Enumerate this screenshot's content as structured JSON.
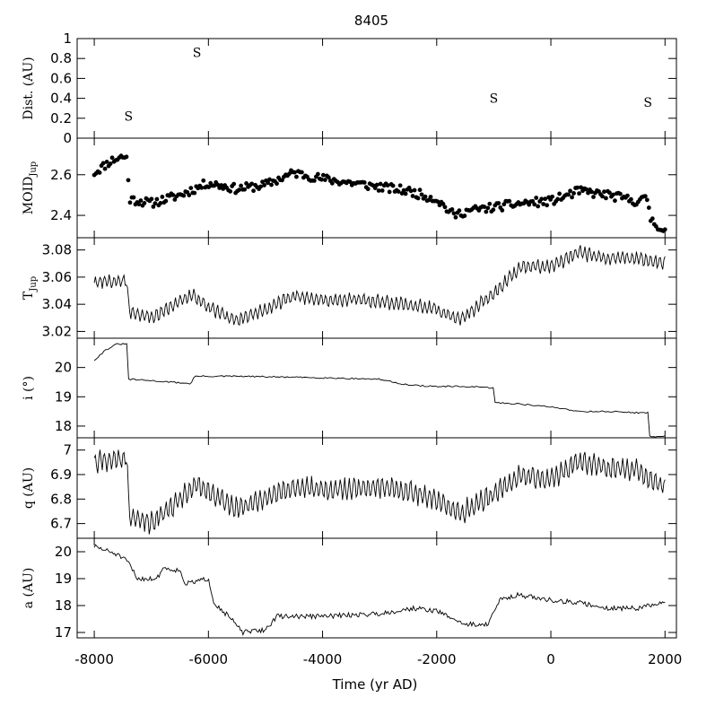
{
  "chart_data": {
    "type": "line",
    "title": "8405",
    "xlabel": "Time (yr AD)",
    "xlim": [
      -8300,
      2200
    ],
    "x_ticks": [
      -8000,
      -6000,
      -4000,
      -2000,
      0,
      2000
    ],
    "x_tick_labels": [
      "-8000",
      "-6000",
      "-4000",
      "-2000",
      "0",
      "2000"
    ],
    "panels": [
      {
        "id": "dist",
        "ylabel": "Dist. (AU)",
        "ylim": [
          0,
          1
        ],
        "yticks": [
          0,
          0.2,
          0.4,
          0.6,
          0.8,
          1
        ],
        "ytick_labels": [
          "0",
          "0.2",
          "0.4",
          "0.6",
          "0.8",
          "1"
        ],
        "annotations": [
          {
            "text": "S",
            "x": -7400,
            "y": 0.22
          },
          {
            "text": "S",
            "x": -6200,
            "y": 0.86
          },
          {
            "text": "S",
            "x": -1000,
            "y": 0.4
          },
          {
            "text": "S",
            "x": 1700,
            "y": 0.36
          }
        ]
      },
      {
        "id": "moid",
        "type": "scatter",
        "ylabel_main": "MOID",
        "ylabel_sub": "Jup",
        "ylim": [
          2.29,
          2.78
        ],
        "yticks": [
          2.4,
          2.6
        ],
        "ytick_labels": [
          "2.4",
          "2.6"
        ],
        "seed": 11,
        "keypoints": [
          [
            -8000,
            2.61
          ],
          [
            -7700,
            2.67
          ],
          [
            -7500,
            2.69
          ],
          [
            -7430,
            2.68
          ],
          [
            -7380,
            2.48
          ],
          [
            -7000,
            2.46
          ],
          [
            -6500,
            2.5
          ],
          [
            -6000,
            2.56
          ],
          [
            -5500,
            2.53
          ],
          [
            -5000,
            2.55
          ],
          [
            -4500,
            2.61
          ],
          [
            -4000,
            2.58
          ],
          [
            -3500,
            2.56
          ],
          [
            -3000,
            2.54
          ],
          [
            -2500,
            2.52
          ],
          [
            -2000,
            2.48
          ],
          [
            -1700,
            2.4
          ],
          [
            -1500,
            2.42
          ],
          [
            -1000,
            2.44
          ],
          [
            -500,
            2.46
          ],
          [
            0,
            2.47
          ],
          [
            500,
            2.52
          ],
          [
            1000,
            2.5
          ],
          [
            1500,
            2.47
          ],
          [
            1700,
            2.48
          ],
          [
            1750,
            2.38
          ],
          [
            2000,
            2.32
          ]
        ],
        "n_points": 320,
        "noise": 0.022
      },
      {
        "id": "tjup",
        "type": "line",
        "ylabel_main": "T",
        "ylabel_sub": "Jup",
        "ylim": [
          3.015,
          3.089
        ],
        "yticks": [
          3.02,
          3.04,
          3.06,
          3.08
        ],
        "ytick_labels": [
          "3.02",
          "3.04",
          "3.06",
          "3.08"
        ],
        "seed": 21,
        "keypoints": [
          [
            -8000,
            3.056
          ],
          [
            -7430,
            3.058
          ],
          [
            -7390,
            3.035
          ],
          [
            -7000,
            3.03
          ],
          [
            -6300,
            3.047
          ],
          [
            -6000,
            3.038
          ],
          [
            -5500,
            3.028
          ],
          [
            -5000,
            3.036
          ],
          [
            -4500,
            3.046
          ],
          [
            -4000,
            3.043
          ],
          [
            -3500,
            3.044
          ],
          [
            -3000,
            3.042
          ],
          [
            -2500,
            3.04
          ],
          [
            -2000,
            3.036
          ],
          [
            -1600,
            3.028
          ],
          [
            -1000,
            3.048
          ],
          [
            -500,
            3.068
          ],
          [
            0,
            3.068
          ],
          [
            500,
            3.078
          ],
          [
            1000,
            3.074
          ],
          [
            1500,
            3.074
          ],
          [
            2000,
            3.07
          ]
        ],
        "n_points": 500,
        "osc_amp": 0.0045,
        "osc_period": 80,
        "noise": 0.0015
      },
      {
        "id": "incl",
        "type": "line",
        "ylabel": "i (°)",
        "ylim": [
          17.6,
          21.0
        ],
        "yticks": [
          18,
          19,
          20
        ],
        "ytick_labels": [
          "18",
          "19",
          "20"
        ],
        "seed": 31,
        "keypoints": [
          [
            -8000,
            20.25
          ],
          [
            -7800,
            20.6
          ],
          [
            -7600,
            20.8
          ],
          [
            -7420,
            20.8
          ],
          [
            -7400,
            19.6
          ],
          [
            -7000,
            19.55
          ],
          [
            -6300,
            19.45
          ],
          [
            -6250,
            19.7
          ],
          [
            -5500,
            19.7
          ],
          [
            -4000,
            19.65
          ],
          [
            -3000,
            19.6
          ],
          [
            -2500,
            19.4
          ],
          [
            -2000,
            19.35
          ],
          [
            -1500,
            19.35
          ],
          [
            -1000,
            19.3
          ],
          [
            -980,
            18.8
          ],
          [
            -500,
            18.75
          ],
          [
            0,
            18.65
          ],
          [
            200,
            18.6
          ],
          [
            500,
            18.5
          ],
          [
            1000,
            18.5
          ],
          [
            1600,
            18.45
          ],
          [
            1700,
            18.45
          ],
          [
            1720,
            17.65
          ],
          [
            2000,
            17.65
          ]
        ],
        "n_points": 300,
        "osc_amp": 0.0,
        "osc_period": 80,
        "noise": 0.025
      },
      {
        "id": "q",
        "type": "line",
        "ylabel": "q (AU)",
        "ylim": [
          6.64,
          7.05
        ],
        "yticks": [
          6.7,
          6.8,
          6.9,
          7.0
        ],
        "ytick_labels": [
          "6.7",
          "6.8",
          "6.9",
          "7"
        ],
        "seed": 41,
        "keypoints": [
          [
            -8000,
            6.95
          ],
          [
            -7430,
            6.97
          ],
          [
            -7390,
            6.73
          ],
          [
            -7000,
            6.7
          ],
          [
            -6500,
            6.8
          ],
          [
            -6200,
            6.86
          ],
          [
            -5500,
            6.76
          ],
          [
            -5000,
            6.8
          ],
          [
            -4500,
            6.85
          ],
          [
            -4000,
            6.84
          ],
          [
            -3500,
            6.84
          ],
          [
            -3000,
            6.85
          ],
          [
            -2500,
            6.83
          ],
          [
            -2000,
            6.8
          ],
          [
            -1600,
            6.74
          ],
          [
            -1000,
            6.82
          ],
          [
            -500,
            6.9
          ],
          [
            0,
            6.88
          ],
          [
            500,
            6.95
          ],
          [
            1000,
            6.93
          ],
          [
            1500,
            6.92
          ],
          [
            2000,
            6.84
          ]
        ],
        "n_points": 500,
        "osc_amp": 0.04,
        "osc_period": 80,
        "noise": 0.012
      },
      {
        "id": "a",
        "type": "line",
        "ylabel": "a (AU)",
        "ylim": [
          16.8,
          20.5
        ],
        "yticks": [
          17,
          18,
          19,
          20
        ],
        "ytick_labels": [
          "17",
          "18",
          "19",
          "20"
        ],
        "seed": 51,
        "keypoints": [
          [
            -8000,
            20.2
          ],
          [
            -7600,
            19.9
          ],
          [
            -7400,
            19.6
          ],
          [
            -7250,
            19.0
          ],
          [
            -6900,
            19.0
          ],
          [
            -6800,
            19.4
          ],
          [
            -6500,
            19.3
          ],
          [
            -6400,
            18.8
          ],
          [
            -6000,
            19.0
          ],
          [
            -5900,
            18.1
          ],
          [
            -5600,
            17.5
          ],
          [
            -5400,
            17.0
          ],
          [
            -5000,
            17.1
          ],
          [
            -4800,
            17.6
          ],
          [
            -4000,
            17.6
          ],
          [
            -3000,
            17.7
          ],
          [
            -2400,
            17.9
          ],
          [
            -2000,
            17.8
          ],
          [
            -1500,
            17.3
          ],
          [
            -1100,
            17.3
          ],
          [
            -900,
            18.2
          ],
          [
            -600,
            18.4
          ],
          [
            0,
            18.2
          ],
          [
            500,
            18.1
          ],
          [
            1000,
            17.9
          ],
          [
            1500,
            17.9
          ],
          [
            2000,
            18.1
          ]
        ],
        "n_points": 450,
        "osc_amp": 0.0,
        "osc_period": 80,
        "noise": 0.09
      }
    ]
  }
}
